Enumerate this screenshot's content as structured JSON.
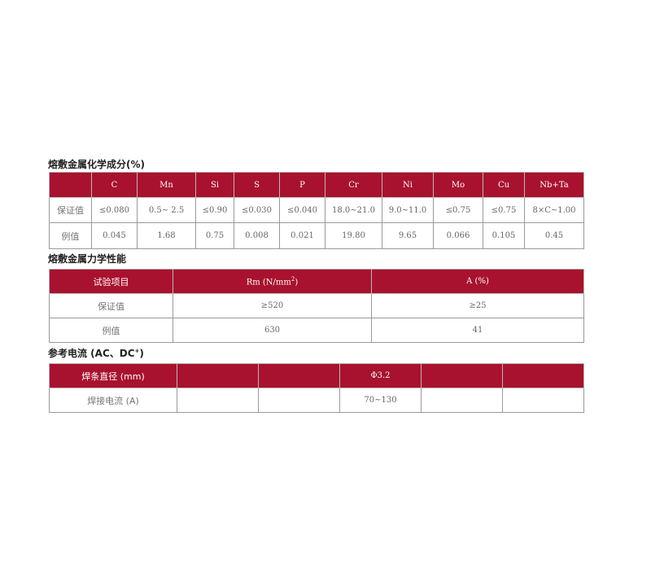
{
  "chemical": {
    "title": "熔敷金属化学成分(%)",
    "headers": [
      "",
      "C",
      "Mn",
      "Si",
      "S",
      "P",
      "Cr",
      "Ni",
      "Mo",
      "Cu",
      "Nb+Ta"
    ],
    "rows": [
      [
        "保证值",
        "≤0.080",
        "0.5~ 2.5",
        "≤0.90",
        "≤0.030",
        "≤0.040",
        "18.0~21.0",
        "9.0~11.0",
        "≤0.75",
        "≤0.75",
        "8×C~1.00"
      ],
      [
        "例值",
        "0.045",
        "1.68",
        "0.75",
        "0.008",
        "0.021",
        "19.80",
        "9.65",
        "0.066",
        "0.105",
        "0.45"
      ]
    ]
  },
  "mechanical": {
    "title": "熔敷金属力学性能",
    "headers": [
      "试验项目",
      "Rm (N/mm",
      "2",
      ")",
      "A (%)"
    ],
    "rows": [
      [
        "保证值",
        "≥520",
        "≥25"
      ],
      [
        "例值",
        "630",
        "41"
      ]
    ]
  },
  "current": {
    "title": "参考电流 (AC、DC",
    "title_sup": "+",
    "title_end": ")",
    "headers": [
      "焊条直径 (mm)",
      "",
      "",
      "Φ3.2",
      "",
      ""
    ],
    "rows": [
      [
        "焊接电流 (A)",
        "",
        "",
        "70~130",
        "",
        ""
      ]
    ]
  },
  "colors": {
    "header_bg": "#a8122e",
    "border": "#9a9a9a"
  }
}
